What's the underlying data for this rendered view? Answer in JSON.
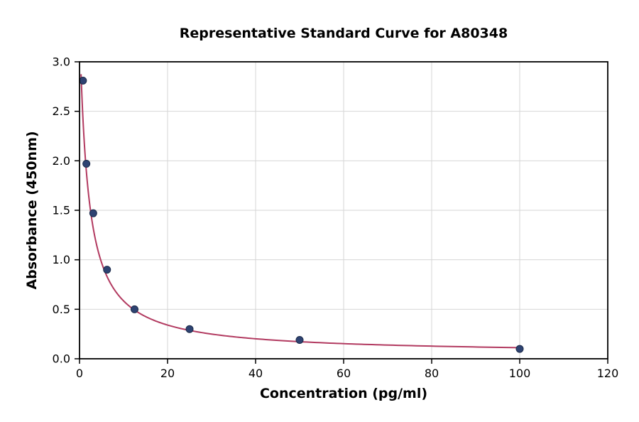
{
  "chart_data": {
    "type": "scatter",
    "title": "Representative Standard Curve for A80348",
    "xlabel": "Concentration (pg/ml)",
    "ylabel": "Absorbance (450nm)",
    "xlim": [
      0,
      120
    ],
    "ylim": [
      0.0,
      3.0
    ],
    "x_ticks": [
      0,
      20,
      40,
      60,
      80,
      100,
      120
    ],
    "x_tick_labels": [
      "0",
      "20",
      "40",
      "60",
      "80",
      "100",
      "120"
    ],
    "y_ticks": [
      0.0,
      0.5,
      1.0,
      1.5,
      2.0,
      2.5,
      3.0
    ],
    "y_tick_labels": [
      "0.0",
      "0.5",
      "1.0",
      "1.5",
      "2.0",
      "2.5",
      "3.0"
    ],
    "grid": true,
    "legend": "none",
    "series": [
      {
        "name": "standard-points",
        "x": [
          0.78,
          1.56,
          3.12,
          6.25,
          12.5,
          25,
          50,
          100
        ],
        "y": [
          2.81,
          1.97,
          1.47,
          0.9,
          0.5,
          0.3,
          0.19,
          0.1
        ],
        "marker": "circle",
        "marker_color": "#2e4372",
        "marker_edge_color": "#1c2b4a"
      },
      {
        "name": "fit-curve",
        "type": "4PL-fit",
        "fit": {
          "a": 3.4,
          "b": 1.0,
          "c": 1.9,
          "d": 0.05
        },
        "x_range": [
          0.3,
          100
        ],
        "line_color": "#b23a60"
      }
    ],
    "style": {
      "grid_color": "#d6d6d6",
      "axis_color": "#000000",
      "background_color": "#ffffff",
      "tick_font_size": 16,
      "curve_width": 2,
      "marker_radius": 5
    }
  }
}
